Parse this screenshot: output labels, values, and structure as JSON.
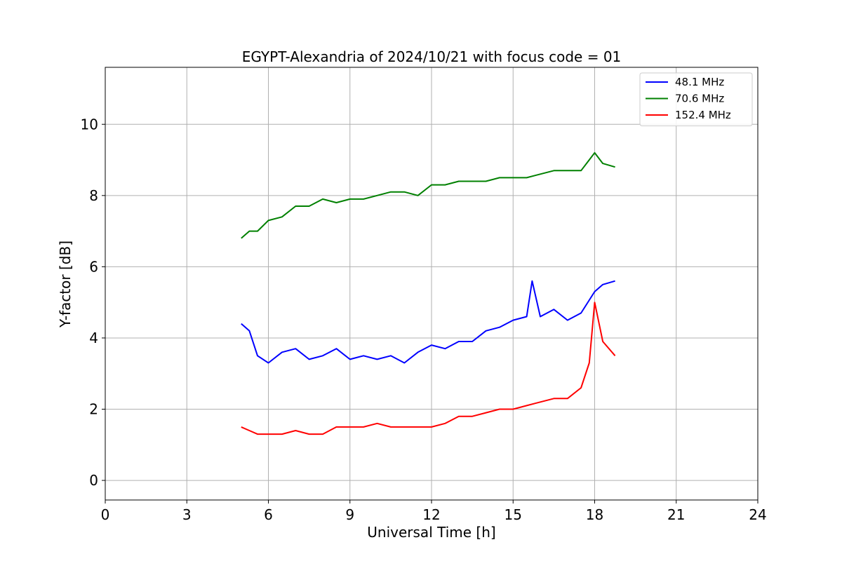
{
  "chart_data": {
    "type": "line",
    "title": "EGYPT-Alexandria of 2024/10/21 with focus code = 01",
    "xlabel": "Universal Time [h]",
    "ylabel": "Y-factor [dB]",
    "xlim": [
      0,
      24
    ],
    "ylim": [
      -0.55,
      11.6
    ],
    "xticks": [
      0,
      3,
      6,
      9,
      12,
      15,
      18,
      21,
      24
    ],
    "xtick_labels": [
      "0",
      "3",
      "6",
      "9",
      "12",
      "15",
      "18",
      "21",
      "24"
    ],
    "yticks": [
      0,
      2,
      4,
      6,
      8,
      10
    ],
    "ytick_labels": [
      "0",
      "2",
      "4",
      "6",
      "8",
      "10"
    ],
    "grid": true,
    "legend_position": "top-right",
    "series": [
      {
        "name": "  48.1 MHz",
        "color": "#0000ff",
        "x": [
          5.0,
          5.3,
          5.6,
          6.0,
          6.5,
          7.0,
          7.5,
          8.0,
          8.5,
          9.0,
          9.5,
          10.0,
          10.5,
          11.0,
          11.5,
          12.0,
          12.5,
          13.0,
          13.5,
          14.0,
          14.5,
          15.0,
          15.5,
          15.7,
          16.0,
          16.5,
          17.0,
          17.5,
          18.0,
          18.3,
          18.75
        ],
        "y": [
          4.4,
          4.2,
          3.5,
          3.3,
          3.6,
          3.7,
          3.4,
          3.5,
          3.7,
          3.4,
          3.5,
          3.4,
          3.5,
          3.3,
          3.6,
          3.8,
          3.7,
          3.9,
          3.9,
          4.2,
          4.3,
          4.5,
          4.6,
          5.6,
          4.6,
          4.8,
          4.5,
          4.7,
          5.3,
          5.5,
          5.6
        ]
      },
      {
        "name": "  70.6 MHz",
        "color": "#008000",
        "x": [
          5.0,
          5.3,
          5.6,
          6.0,
          6.5,
          7.0,
          7.5,
          8.0,
          8.5,
          9.0,
          9.5,
          10.0,
          10.5,
          11.0,
          11.5,
          12.0,
          12.5,
          13.0,
          13.5,
          14.0,
          14.5,
          15.0,
          15.5,
          16.0,
          16.5,
          17.0,
          17.5,
          17.8,
          18.0,
          18.3,
          18.75
        ],
        "y": [
          6.8,
          7.0,
          7.0,
          7.3,
          7.4,
          7.7,
          7.7,
          7.9,
          7.8,
          7.9,
          7.9,
          8.0,
          8.1,
          8.1,
          8.0,
          8.3,
          8.3,
          8.4,
          8.4,
          8.4,
          8.5,
          8.5,
          8.5,
          8.6,
          8.7,
          8.7,
          8.7,
          9.0,
          9.2,
          8.9,
          8.8
        ]
      },
      {
        "name": " 152.4 MHz",
        "color": "#ff0000",
        "x": [
          5.0,
          5.3,
          5.6,
          6.0,
          6.5,
          7.0,
          7.5,
          8.0,
          8.5,
          9.0,
          9.5,
          10.0,
          10.5,
          11.0,
          11.5,
          12.0,
          12.5,
          13.0,
          13.5,
          14.0,
          14.5,
          15.0,
          15.5,
          16.0,
          16.5,
          17.0,
          17.5,
          17.8,
          18.0,
          18.3,
          18.75
        ],
        "y": [
          1.5,
          1.4,
          1.3,
          1.3,
          1.3,
          1.4,
          1.3,
          1.3,
          1.5,
          1.5,
          1.5,
          1.6,
          1.5,
          1.5,
          1.5,
          1.5,
          1.6,
          1.8,
          1.8,
          1.9,
          2.0,
          2.0,
          2.1,
          2.2,
          2.3,
          2.3,
          2.6,
          3.3,
          5.0,
          3.9,
          3.5
        ]
      }
    ]
  }
}
